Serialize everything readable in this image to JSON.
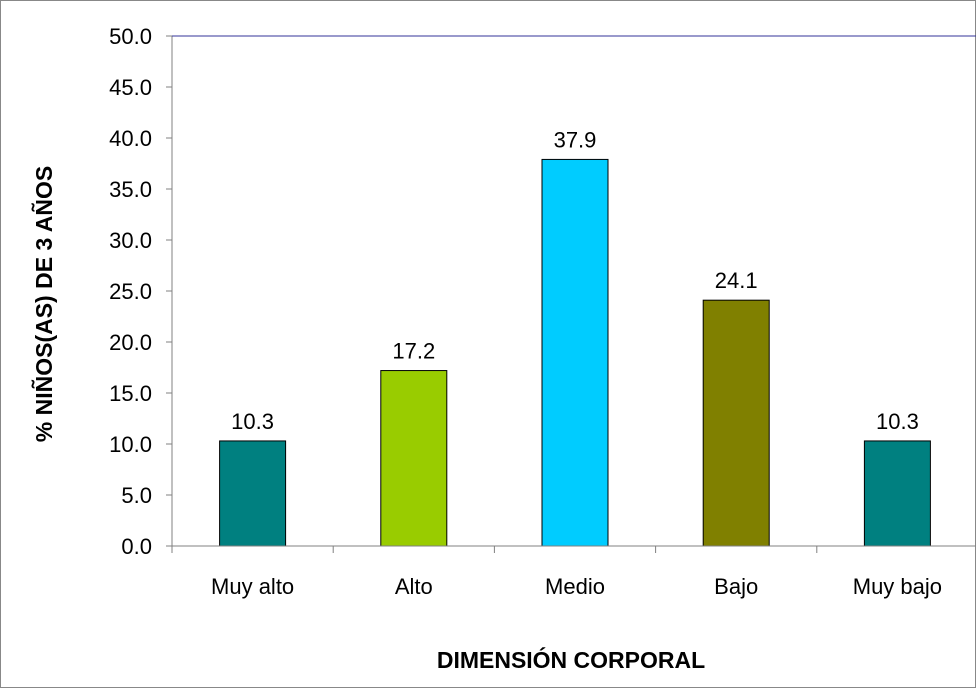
{
  "chart_data": {
    "type": "bar",
    "title": "",
    "xlabel": "DIMENSIÓN CORPORAL",
    "ylabel": "% NIÑOS(AS) DE 3 AÑOS",
    "categories": [
      "Muy alto",
      "Alto",
      "Medio",
      "Bajo",
      "Muy bajo"
    ],
    "values": [
      10.3,
      17.2,
      37.9,
      24.1,
      10.3
    ],
    "value_labels": [
      "10.3",
      "17.2",
      "37.9",
      "24.1",
      "10.3"
    ],
    "colors": [
      "#008080",
      "#99CC00",
      "#00CCFF",
      "#808000",
      "#008080"
    ],
    "ylim": [
      0,
      50
    ],
    "yticks": [
      "0.0",
      "5.0",
      "10.0",
      "15.0",
      "20.0",
      "25.0",
      "30.0",
      "35.0",
      "40.0",
      "45.0",
      "50.0"
    ],
    "grid": false,
    "legend": "none"
  }
}
